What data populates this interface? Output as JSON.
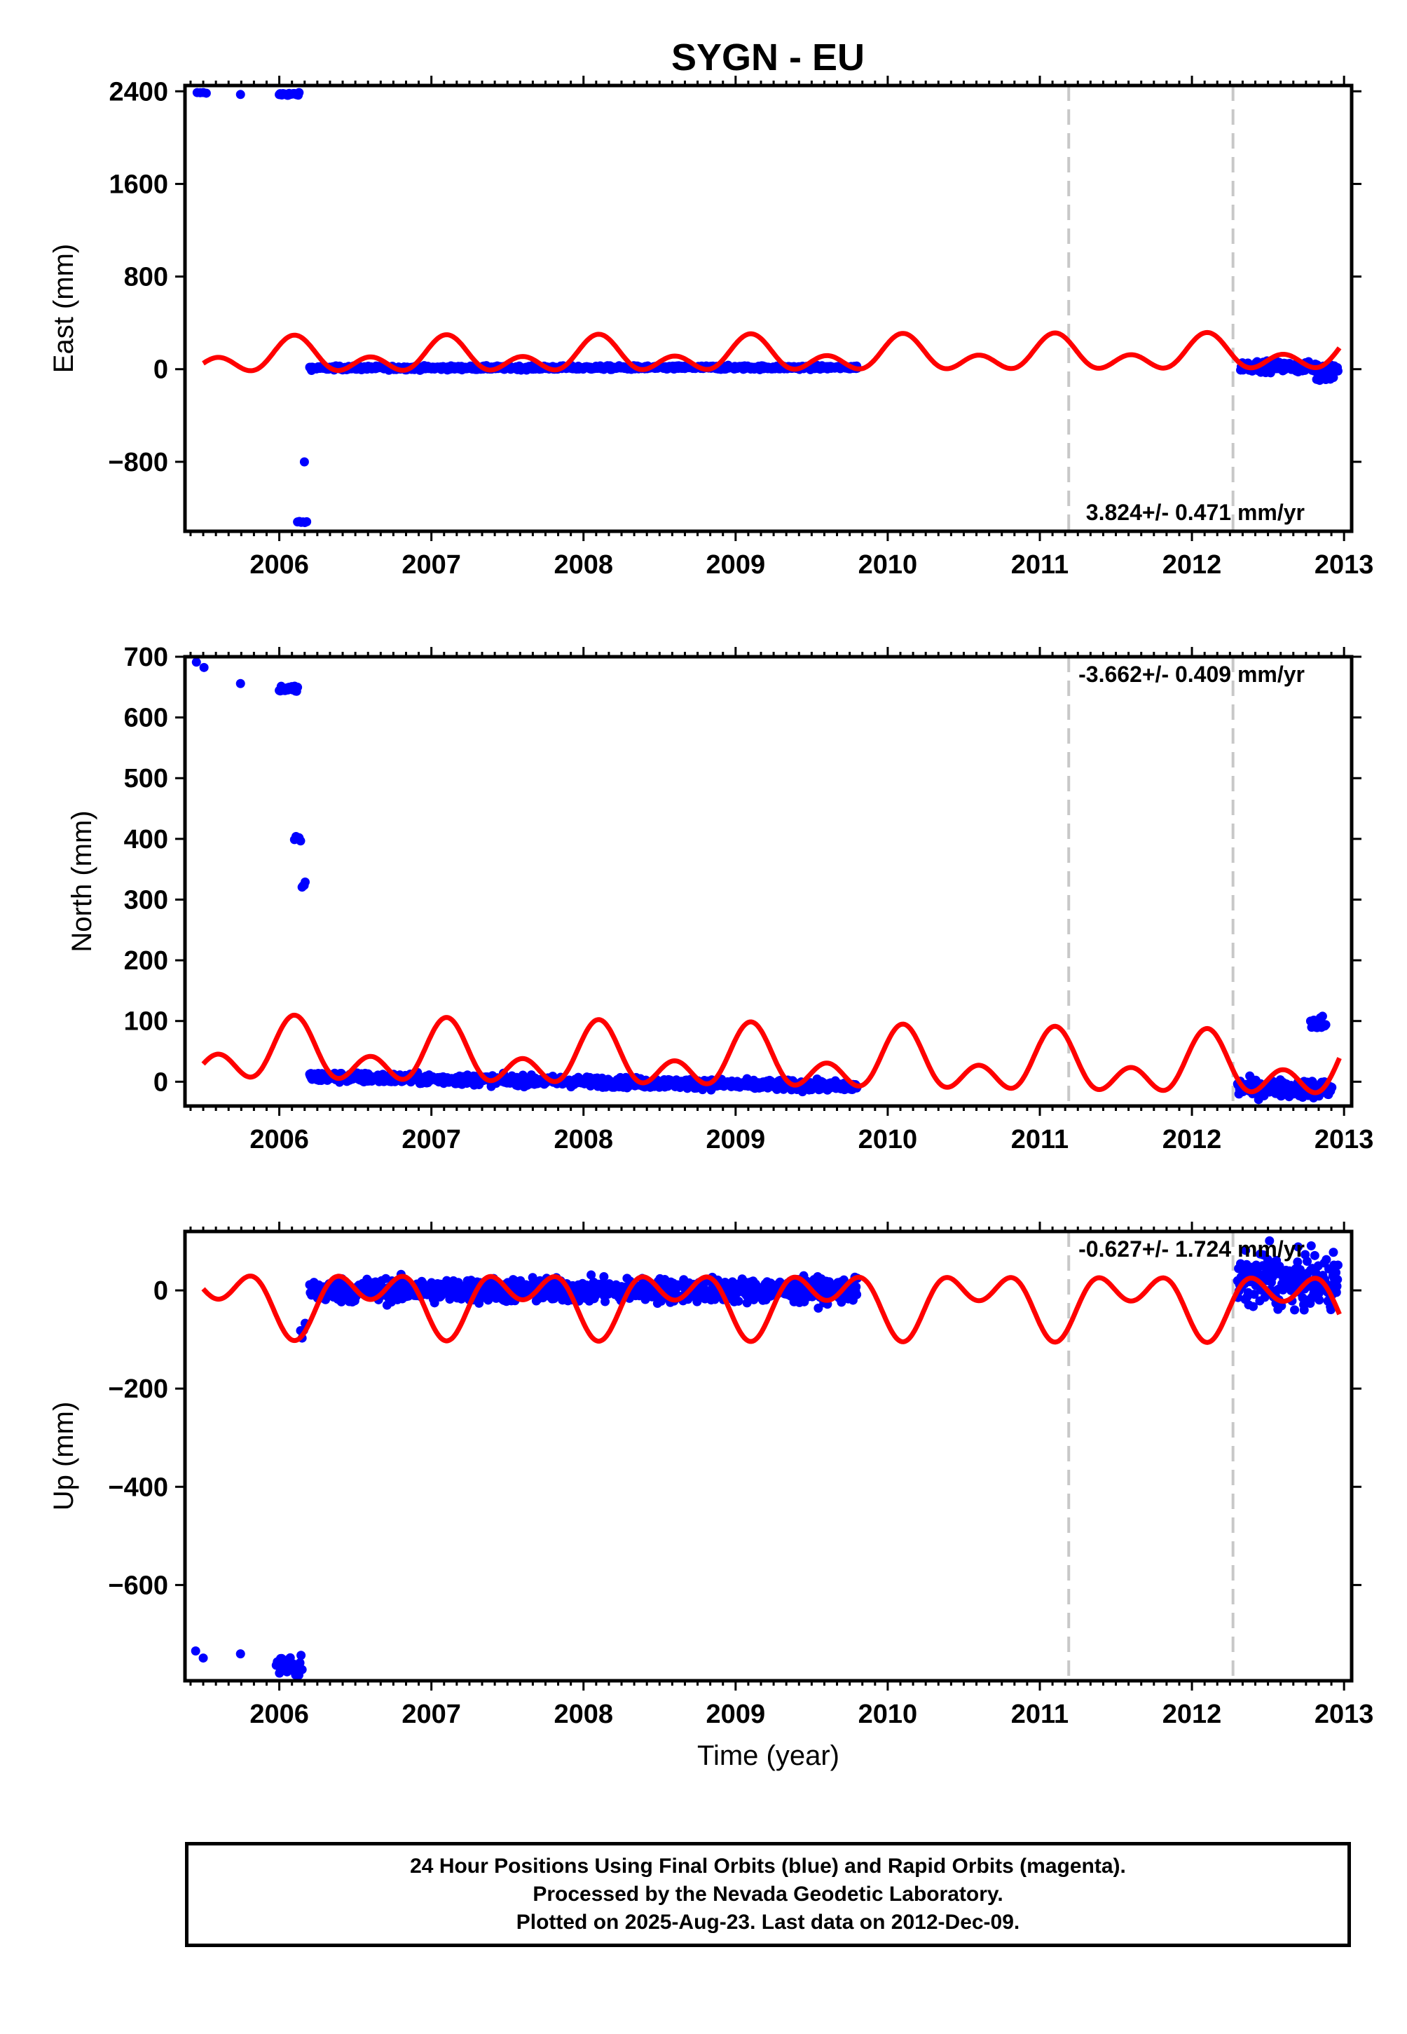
{
  "title": "SYGN - EU",
  "chart_data": [
    {
      "type": "scatter",
      "panel": "east",
      "ylabel": "East (mm)",
      "xlabel": "",
      "xlim": [
        2005.38,
        2013.05
      ],
      "ylim": [
        -1400,
        2450
      ],
      "yticks": [
        2400,
        1600,
        800,
        0,
        -800
      ],
      "ytick_labels": [
        "2400",
        "1600",
        "800",
        "0",
        "−800"
      ],
      "xticks": [
        2006,
        2007,
        2008,
        2009,
        2010,
        2011,
        2012,
        2013
      ],
      "xtick_labels": [
        "2006",
        "2007",
        "2008",
        "2009",
        "2010",
        "2011",
        "2012",
        "2013"
      ],
      "rate_label": "3.824+/- 0.471 mm/yr",
      "rate_position": "bottom-right",
      "vlines": [
        2011.19,
        2012.27
      ],
      "fit": {
        "color": "#ff0000",
        "mean": 110,
        "annual_amp": 95,
        "annual_phase": 2006.1,
        "semi_amp": 100,
        "semi_phase": 2006.1,
        "trend": 3.824,
        "ref_year": 2009
      },
      "series": [
        {
          "role": "positions",
          "color": "#0000ff",
          "clusters": [
            {
              "x": [
                2005.46,
                2005.52
              ],
              "y": [
                2385,
                2385
              ],
              "n": 4,
              "spread": 4
            },
            {
              "x": [
                2005.74,
                2005.75
              ],
              "y": [
                2370,
                2370
              ],
              "n": 1,
              "spread": 2
            },
            {
              "x": [
                2006.0,
                2006.13
              ],
              "y": [
                2375,
                2375
              ],
              "n": 25,
              "spread": 6
            },
            {
              "x": [
                2006.16,
                2006.17
              ],
              "y": [
                -800,
                -800
              ],
              "n": 1,
              "spread": 2
            },
            {
              "x": [
                2006.12,
                2006.18
              ],
              "y": [
                -1320,
                -1320
              ],
              "n": 6,
              "spread": 4
            },
            {
              "x": [
                2006.2,
                2009.8
              ],
              "y": [
                10,
                15
              ],
              "n": 900,
              "spread": 8
            },
            {
              "x": [
                2012.32,
                2012.96
              ],
              "y": [
                30,
                10
              ],
              "n": 160,
              "spread": 22
            },
            {
              "x": [
                2012.82,
                2012.93
              ],
              "y": [
                -80,
                -70
              ],
              "n": 12,
              "spread": 12
            }
          ]
        }
      ]
    },
    {
      "type": "scatter",
      "panel": "north",
      "ylabel": "North (mm)",
      "xlabel": "",
      "xlim": [
        2005.38,
        2013.05
      ],
      "ylim": [
        -40,
        700
      ],
      "yticks": [
        700,
        600,
        500,
        400,
        300,
        200,
        100,
        0
      ],
      "ytick_labels": [
        "700",
        "600",
        "500",
        "400",
        "300",
        "200",
        "100",
        "0"
      ],
      "xticks": [
        2006,
        2007,
        2008,
        2009,
        2010,
        2011,
        2012,
        2013
      ],
      "xtick_labels": [
        "2006",
        "2007",
        "2008",
        "2009",
        "2010",
        "2011",
        "2012",
        "2013"
      ],
      "rate_label": "-3.662+/- 0.409 mm/yr",
      "rate_position": "top-right",
      "vlines": [
        2011.19,
        2012.27
      ],
      "fit": {
        "color": "#ff0000",
        "mean": 33,
        "annual_amp": 33,
        "annual_phase": 2006.1,
        "semi_amp": 33,
        "semi_phase": 2006.1,
        "trend": -3.662,
        "ref_year": 2009
      },
      "series": [
        {
          "role": "positions",
          "color": "#0000ff",
          "clusters": [
            {
              "x": [
                2005.45,
                2005.46
              ],
              "y": [
                690,
                690
              ],
              "n": 1,
              "spread": 1
            },
            {
              "x": [
                2005.5,
                2005.51
              ],
              "y": [
                684,
                684
              ],
              "n": 1,
              "spread": 1
            },
            {
              "x": [
                2005.74,
                2005.75
              ],
              "y": [
                655,
                655
              ],
              "n": 1,
              "spread": 1
            },
            {
              "x": [
                2006.0,
                2006.12
              ],
              "y": [
                647,
                647
              ],
              "n": 20,
              "spread": 3
            },
            {
              "x": [
                2006.1,
                2006.14
              ],
              "y": [
                400,
                400
              ],
              "n": 5,
              "spread": 4
            },
            {
              "x": [
                2006.15,
                2006.17
              ],
              "y": [
                323,
                323
              ],
              "n": 4,
              "spread": 4
            },
            {
              "x": [
                2006.2,
                2009.8
              ],
              "y": [
                8,
                -8
              ],
              "n": 900,
              "spread": 4
            },
            {
              "x": [
                2012.3,
                2012.92
              ],
              "y": [
                -10,
                -12
              ],
              "n": 140,
              "spread": 7
            },
            {
              "x": [
                2012.78,
                2012.88
              ],
              "y": [
                95,
                95
              ],
              "n": 15,
              "spread": 7
            }
          ]
        }
      ]
    },
    {
      "type": "scatter",
      "panel": "up",
      "ylabel": "Up (mm)",
      "xlabel": "Time (year)",
      "xlim": [
        2005.38,
        2013.05
      ],
      "ylim": [
        -795,
        120
      ],
      "yticks": [
        0,
        -200,
        -400,
        -600
      ],
      "ytick_labels": [
        "0",
        "−200",
        "−400",
        "−600"
      ],
      "xticks": [
        2006,
        2007,
        2008,
        2009,
        2010,
        2011,
        2012,
        2013
      ],
      "xtick_labels": [
        "2006",
        "2007",
        "2008",
        "2009",
        "2010",
        "2011",
        "2012",
        "2013"
      ],
      "rate_label": "-0.627+/- 1.724 mm/yr",
      "rate_position": "top-right",
      "vlines": [
        2011.19,
        2012.27
      ],
      "fit": {
        "color": "#ff0000",
        "mean": -20,
        "annual_amp": 42,
        "annual_phase": 2006.6,
        "semi_amp": 42,
        "semi_phase": 2006.35,
        "trend": -0.627,
        "ref_year": 2009
      },
      "series": [
        {
          "role": "positions",
          "color": "#0000ff",
          "clusters": [
            {
              "x": [
                2005.45,
                2005.5
              ],
              "y": [
                -735,
                -745
              ],
              "n": 2,
              "spread": 4
            },
            {
              "x": [
                2005.74,
                2005.75
              ],
              "y": [
                -740,
                -740
              ],
              "n": 1,
              "spread": 3
            },
            {
              "x": [
                2005.98,
                2006.15
              ],
              "y": [
                -760,
                -770
              ],
              "n": 25,
              "spread": 12
            },
            {
              "x": [
                2006.14,
                2006.17
              ],
              "y": [
                -85,
                -85
              ],
              "n": 4,
              "spread": 12
            },
            {
              "x": [
                2006.2,
                2009.8
              ],
              "y": [
                0,
                0
              ],
              "n": 900,
              "spread": 12
            },
            {
              "x": [
                2012.3,
                2012.96
              ],
              "y": [
                20,
                15
              ],
              "n": 200,
              "spread": 25
            },
            {
              "x": [
                2012.5,
                2012.52
              ],
              "y": [
                100,
                100
              ],
              "n": 1,
              "spread": 2
            },
            {
              "x": [
                2012.92,
                2012.94
              ],
              "y": [
                80,
                80
              ],
              "n": 1,
              "spread": 2
            }
          ]
        }
      ]
    }
  ],
  "caption": {
    "line1": "24 Hour Positions Using Final Orbits (blue) and Rapid Orbits (magenta).",
    "line2": "Processed by the Nevada Geodetic Laboratory.",
    "line3": "Plotted on 2025-Aug-23. Last data on 2012-Dec-09."
  }
}
